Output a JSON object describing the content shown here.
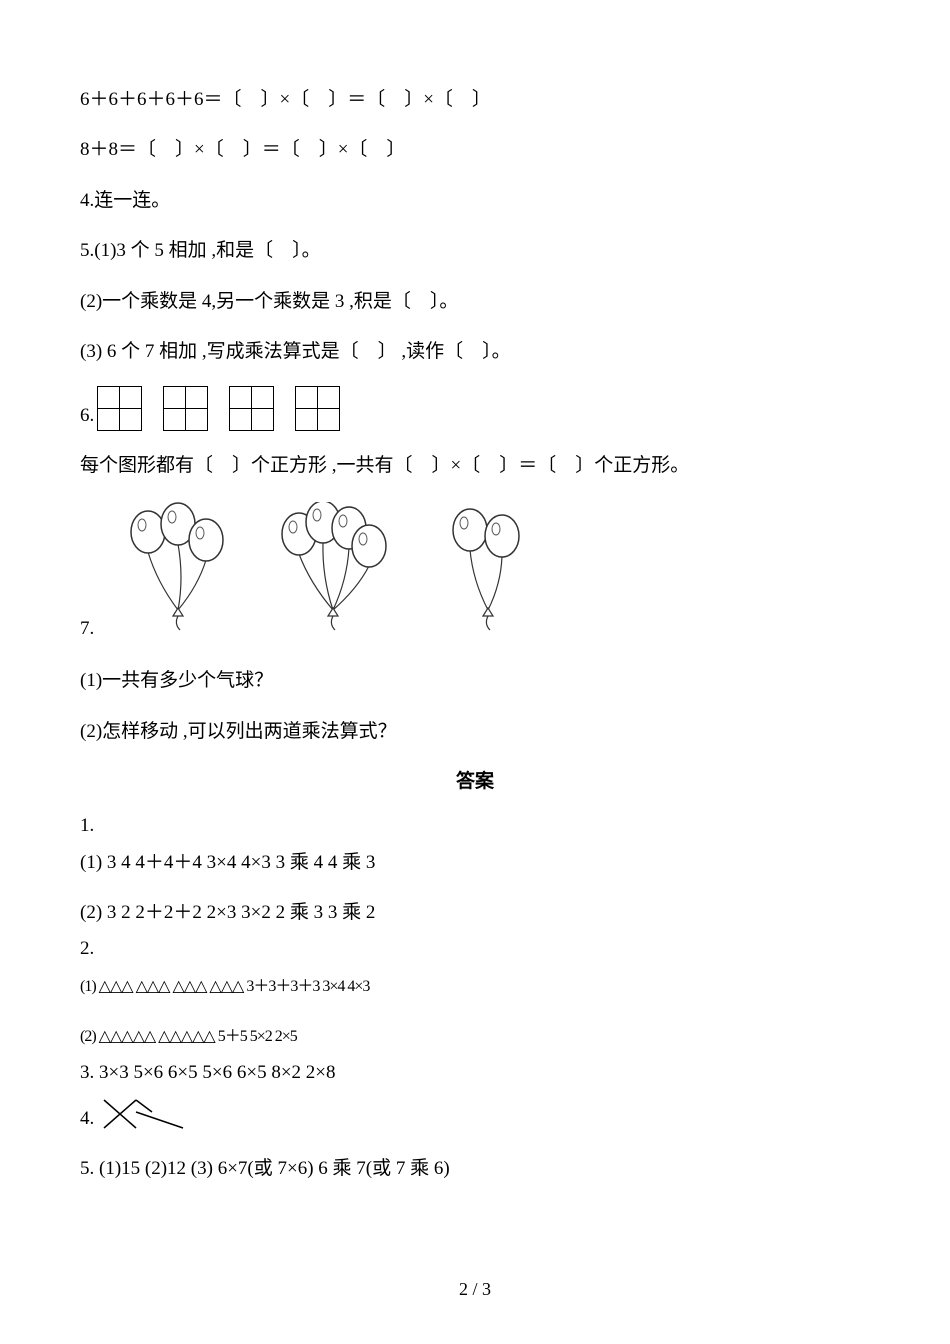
{
  "q_line1": "6＋6＋6＋6＋6＝〔　〕×〔　〕＝〔　〕×〔　〕",
  "q_line2": "8＋8＝〔　〕×〔　〕＝〔　〕×〔　〕",
  "q4_title": "4.连一连。",
  "q5_line1": "5.(1)3 个 5 相加 ,和是〔　〕。",
  "q5_line2": "(2)一个乘数是 4,另一个乘数是 3 ,积是〔　〕。",
  "q5_line3": "(3) 6 个 7 相加 ,写成乘法算式是〔　〕 ,读作〔　〕。",
  "q6_prefix": "6.",
  "q6_text": "每个图形都有〔　〕个正方形 ,一共有〔　〕×〔　〕＝〔　〕个正方形。",
  "q7_prefix": "7.",
  "q7_line1": "(1)一共有多少个气球？",
  "q7_line2": "(2)怎样移动 ,可以列出两道乘法算式？",
  "answer_title": "答案",
  "a1_label": "1.",
  "a1_line1": "(1) 3  4   4＋4＋4   3×4   4×3   3 乘 4   4 乘 3",
  "a1_line2": "(2) 3  2   2＋2＋2    2×3    3×2    2 乘 3   3 乘 2",
  "a2_label": "2.",
  "a2_line1_tri": "(1) △△△  △△△  △△△  △△△   3＋3＋3＋3   3×4    4×3",
  "a2_line2_tri": "(2) △△△△△  △△△△△   5＋5 5×2   2×5",
  "a3_line": "3. 3×3   5×6 6×5    5×6   6×5    8×2   2×8",
  "a4_label": "4.",
  "a5_line": "5. (1)15   (2)12   (3) 6×7(或 7×6)  6 乘 7(或 7 乘 6)",
  "page_footer": "2 / 3",
  "square_groups": 4,
  "balloon_groups": [
    {
      "count": 3
    },
    {
      "count": 4
    },
    {
      "count": 2
    }
  ],
  "colors": {
    "text": "#000000",
    "bg": "#ffffff",
    "balloon_stroke": "#333333"
  }
}
